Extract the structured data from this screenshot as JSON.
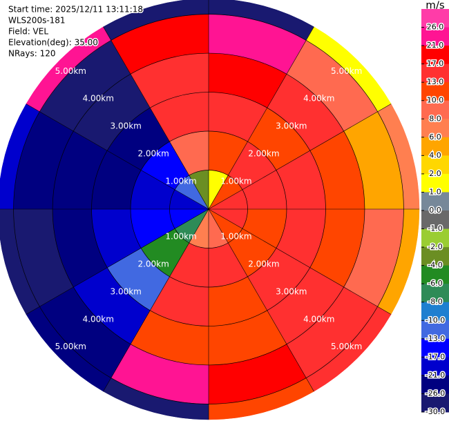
{
  "chart_data": {
    "type": "ppi",
    "info_lines": [
      "Start time: 2025/12/11 13:11:18",
      "WLS200s-181",
      "Field: VEL",
      "Elevation(deg): 35.00",
      "NRays: 120"
    ],
    "rlim": [
      0,
      5.4
    ],
    "rticks": [
      {
        "value": 1,
        "label": "1.00km"
      },
      {
        "value": 2,
        "label": "2.00km"
      },
      {
        "value": 3,
        "label": "3.00km"
      },
      {
        "value": 4,
        "label": "4.00km"
      },
      {
        "value": 5,
        "label": "5.00km"
      }
    ],
    "values": [
      [
        2,
        13,
        17,
        17,
        13,
        10,
        8,
        -6,
        -13,
        -17,
        -10,
        -2
      ],
      [
        13,
        17,
        17,
        13,
        13,
        17,
        17,
        -4,
        -13,
        -17,
        -13,
        10
      ],
      [
        17,
        13,
        17,
        17,
        17,
        13,
        17,
        -10,
        -17,
        -21,
        -21,
        17
      ],
      [
        21,
        17,
        13,
        13,
        17,
        13,
        13,
        -17,
        -21,
        -21,
        -26,
        17
      ],
      [
        26,
        10,
        6,
        10,
        17,
        21,
        26,
        -21,
        -26,
        -21,
        -26,
        21
      ],
      [
        -26,
        2,
        8,
        6,
        17,
        13,
        -26,
        -21,
        -26,
        -17,
        26,
        -26
      ]
    ],
    "colorbar": {
      "title": "m/s",
      "ticks": [
        {
          "value": 26,
          "label": "26.0"
        },
        {
          "value": 21,
          "label": "21.0"
        },
        {
          "value": 17,
          "label": "17.0"
        },
        {
          "value": 13,
          "label": "13.0"
        },
        {
          "value": 10,
          "label": "10.0"
        },
        {
          "value": 8,
          "label": "8.0"
        },
        {
          "value": 6,
          "label": "6.0"
        },
        {
          "value": 4,
          "label": "4.0"
        },
        {
          "value": 2,
          "label": "2.0"
        },
        {
          "value": 1,
          "label": "1.0"
        },
        {
          "value": 0,
          "label": "0.0"
        },
        {
          "value": -1,
          "label": "-1.0"
        },
        {
          "value": -2,
          "label": "-2.0"
        },
        {
          "value": -4,
          "label": "-4.0"
        },
        {
          "value": -6,
          "label": "-6.0"
        },
        {
          "value": -8,
          "label": "-8.0"
        },
        {
          "value": -10,
          "label": "-10.0"
        },
        {
          "value": -13,
          "label": "-13.0"
        },
        {
          "value": -17,
          "label": "-17.0"
        },
        {
          "value": -21,
          "label": "-21.0"
        },
        {
          "value": -26,
          "label": "-26.0"
        },
        {
          "value": -30,
          "label": "-30.0"
        }
      ],
      "colors": [
        "#ff3ca8",
        "#ff1493",
        "#ff0000",
        "#ff3030",
        "#ff4500",
        "#ff6a50",
        "#ff7f50",
        "#ffa500",
        "#ffd700",
        "#ffff00",
        "#778899",
        "#696969",
        "#9acd32",
        "#6b8e23",
        "#228b22",
        "#2e8b57",
        "#1e7fd0",
        "#4169e1",
        "#0000ff",
        "#0000cd",
        "#000080",
        "#191970"
      ]
    }
  }
}
